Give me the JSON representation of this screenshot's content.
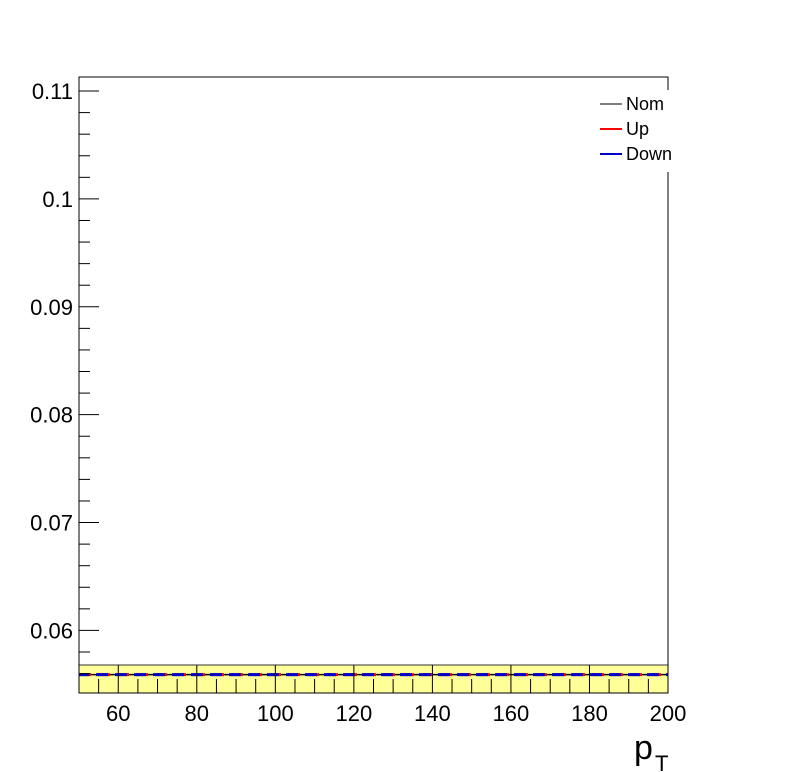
{
  "chart_data": {
    "type": "line",
    "title": "",
    "xlabel_main": "p",
    "xlabel_sub": "T",
    "ylabel": "",
    "xlim": [
      50,
      200
    ],
    "ylim": [
      0.0542,
      0.1113
    ],
    "x_major_ticks": [
      60,
      80,
      100,
      120,
      140,
      160,
      180,
      200
    ],
    "x_tick_labels": [
      "60",
      "80",
      "100",
      "120",
      "140",
      "160",
      "180",
      "200"
    ],
    "y_major_ticks": [
      0.06,
      0.07,
      0.08,
      0.09,
      0.1,
      0.11
    ],
    "y_tick_labels": [
      "0.06",
      "0.07",
      "0.08",
      "0.09",
      "0.1",
      "0.11"
    ],
    "band": {
      "y_low": 0.0542,
      "y_high": 0.0568,
      "color": "#ffff99",
      "edge": "#333333"
    },
    "series": [
      {
        "name": "Nom",
        "color": "#000000",
        "style": "solid",
        "x": [
          50,
          200
        ],
        "y": [
          0.0559,
          0.0559
        ]
      },
      {
        "name": "Up",
        "color": "#ff0000",
        "style": "dashed",
        "x": [
          50,
          200
        ],
        "y": [
          0.0559,
          0.0559
        ]
      },
      {
        "name": "Down",
        "color": "#0000cc",
        "style": "dashed",
        "x": [
          50,
          200
        ],
        "y": [
          0.0559,
          0.0559
        ]
      }
    ],
    "legend_position": "top-right"
  }
}
